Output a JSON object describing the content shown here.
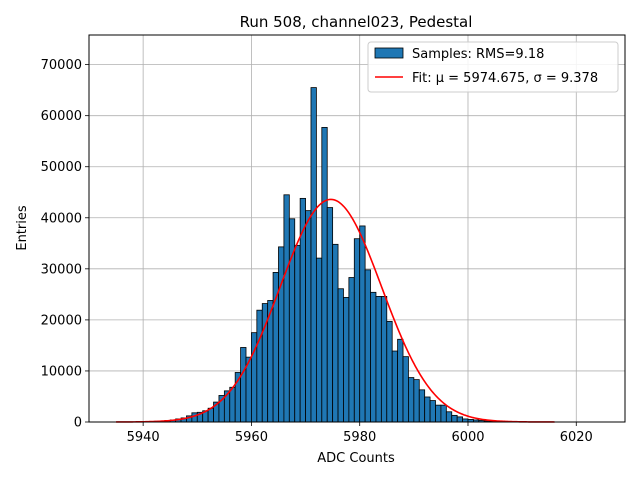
{
  "chart_data": {
    "type": "bar",
    "title": "Run 508, channel023, Pedestal",
    "xlabel": "ADC Counts",
    "ylabel": "Entries",
    "xlim": [
      5930,
      6029
    ],
    "ylim": [
      0,
      75800
    ],
    "xticks": [
      5940,
      5960,
      5980,
      6000,
      6020
    ],
    "yticks": [
      0,
      10000,
      20000,
      30000,
      40000,
      50000,
      60000,
      70000
    ],
    "grid": true,
    "legend_position": "top-right",
    "bin_width": 1,
    "bar_color": "#1f77b4",
    "fit_color": "#ff0000",
    "histogram": {
      "name": "Samples: RMS=9.18",
      "bin_left_edges": [
        5941,
        5942,
        5943,
        5944,
        5945,
        5946,
        5947,
        5948,
        5949,
        5950,
        5951,
        5952,
        5953,
        5954,
        5955,
        5956,
        5957,
        5958,
        5959,
        5960,
        5961,
        5962,
        5963,
        5964,
        5965,
        5966,
        5967,
        5968,
        5969,
        5970,
        5971,
        5972,
        5973,
        5974,
        5975,
        5976,
        5977,
        5978,
        5979,
        5980,
        5981,
        5982,
        5983,
        5984,
        5985,
        5986,
        5987,
        5988,
        5989,
        5990,
        5991,
        5992,
        5993,
        5994,
        5995,
        5996,
        5997,
        5998,
        5999,
        6000,
        6001,
        6002,
        6003,
        6004,
        6005,
        6006,
        6007,
        6008
      ],
      "counts": [
        100,
        150,
        200,
        300,
        400,
        600,
        800,
        1200,
        1800,
        1900,
        2200,
        2700,
        3900,
        5200,
        6100,
        6800,
        9700,
        14600,
        12700,
        17500,
        21900,
        23200,
        23800,
        29300,
        34300,
        44500,
        39800,
        34600,
        43800,
        41400,
        65500,
        32100,
        57700,
        42000,
        34800,
        26100,
        24400,
        28300,
        35900,
        38400,
        29800,
        25400,
        24600,
        24600,
        19700,
        13900,
        16200,
        12800,
        8700,
        8300,
        6300,
        4900,
        4200,
        3300,
        3300,
        2000,
        1300,
        1000,
        600,
        500,
        400,
        300,
        200,
        150,
        100,
        80,
        50,
        30
      ]
    },
    "fit": {
      "name": "Fit: μ = 5974.675, σ = 9.378",
      "mu": 5974.675,
      "sigma": 9.378,
      "amplitude": 43600,
      "x_range": [
        5935,
        6016
      ]
    }
  }
}
